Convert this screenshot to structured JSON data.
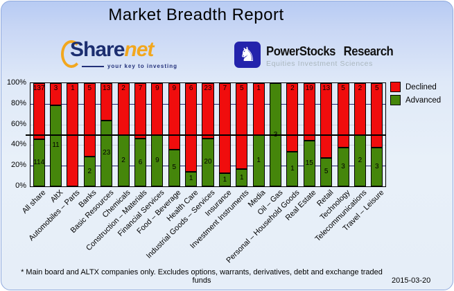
{
  "title": "Market Breadth Report",
  "logos": {
    "sharenet": {
      "text_share": "Share",
      "text_net": "net",
      "tagline": "your key to investing",
      "brand_navy": "#1c2e70",
      "brand_orange": "#f2a71e"
    },
    "powerstocks": {
      "icon": "knight-icon",
      "icon_glyph": "♞",
      "name": "PowerStocks Research",
      "tagline": "Equities Investment Sciences",
      "box_color": "#2323ac"
    }
  },
  "chart_data": {
    "type": "bar",
    "stacked": true,
    "percent_axis": true,
    "title": "Market Breadth Report",
    "categories": [
      "All share",
      "AltX",
      "Automobiles – Parts",
      "Banks",
      "Basic Resources",
      "Chemicals",
      "Construction – Materials",
      "Financial Services",
      "Food – Beverage",
      "Health Care",
      "Industrial Goods – Services",
      "Insurance",
      "Investment Instruments",
      "Media",
      "Oil – Gas",
      "Personal – Household Goods",
      "Real Estate",
      "Retail",
      "Technology",
      "Telecommunications",
      "Travel – Leisure"
    ],
    "series": [
      {
        "name": "Declined",
        "color": "#f00d0d",
        "values": [
          137,
          3,
          1,
          5,
          13,
          2,
          7,
          9,
          9,
          6,
          23,
          7,
          5,
          1,
          0,
          2,
          19,
          13,
          5,
          2,
          5
        ]
      },
      {
        "name": "Advanced",
        "color": "#45860b",
        "values": [
          114,
          11,
          0,
          2,
          23,
          2,
          6,
          9,
          5,
          1,
          20,
          1,
          1,
          1,
          3,
          1,
          15,
          5,
          3,
          2,
          3
        ]
      }
    ],
    "yticks": [
      "100%",
      "80%",
      "60%",
      "40%",
      "20%",
      "0%"
    ],
    "ylim": [
      0,
      100
    ],
    "legend_position": "top-right",
    "reference_line": "50%",
    "grid": "on"
  },
  "footer": {
    "note": "* Main board and ALTX companies only. Excludes options, warrants, derivatives, debt and exchange traded funds",
    "date": "2015-03-20"
  }
}
